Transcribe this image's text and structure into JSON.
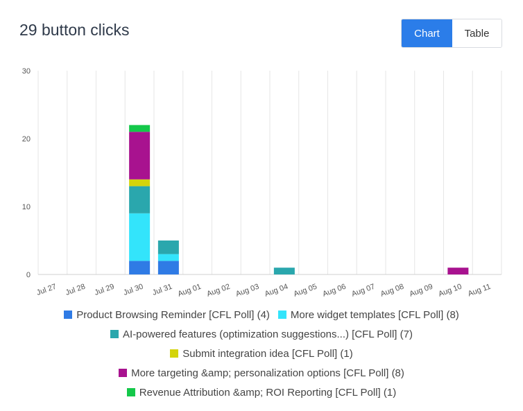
{
  "header": {
    "title": "29 button clicks",
    "chart_label": "Chart",
    "table_label": "Table"
  },
  "chart_data": {
    "type": "bar",
    "stacked": true,
    "categories": [
      "Jul 27",
      "Jul 28",
      "Jul 29",
      "Jul 30",
      "Jul 31",
      "Aug 01",
      "Aug 02",
      "Aug 03",
      "Aug 04",
      "Aug 05",
      "Aug 06",
      "Aug 07",
      "Aug 08",
      "Aug 09",
      "Aug 10",
      "Aug 11"
    ],
    "ylim": [
      0,
      30
    ],
    "yticks": [
      0,
      10,
      20,
      30
    ],
    "grid": true,
    "legend_position": "bottom",
    "series": [
      {
        "name": "Product Browsing Reminder [CFL Poll] (4)",
        "color": "#2f7be5",
        "values": [
          0,
          0,
          0,
          2,
          2,
          0,
          0,
          0,
          0,
          0,
          0,
          0,
          0,
          0,
          0,
          0
        ]
      },
      {
        "name": "More widget templates [CFL Poll] (8)",
        "color": "#33e4fb",
        "values": [
          0,
          0,
          0,
          7,
          1,
          0,
          0,
          0,
          0,
          0,
          0,
          0,
          0,
          0,
          0,
          0
        ]
      },
      {
        "name": "AI-powered features (optimization suggestions...) [CFL Poll] (7)",
        "color": "#2aa7ad",
        "values": [
          0,
          0,
          0,
          4,
          2,
          0,
          0,
          0,
          1,
          0,
          0,
          0,
          0,
          0,
          0,
          0
        ]
      },
      {
        "name": "Submit integration idea [CFL Poll] (1)",
        "color": "#d4d40a",
        "values": [
          0,
          0,
          0,
          1,
          0,
          0,
          0,
          0,
          0,
          0,
          0,
          0,
          0,
          0,
          0,
          0
        ]
      },
      {
        "name": "More targeting &amp; personalization options [CFL Poll] (8)",
        "color": "#a8128f",
        "values": [
          0,
          0,
          0,
          7,
          0,
          0,
          0,
          0,
          0,
          0,
          0,
          0,
          0,
          0,
          1,
          0
        ]
      },
      {
        "name": "Revenue Attribution &amp; ROI Reporting [CFL Poll] (1)",
        "color": "#14c84a",
        "values": [
          0,
          0,
          0,
          1,
          0,
          0,
          0,
          0,
          0,
          0,
          0,
          0,
          0,
          0,
          0,
          0
        ]
      }
    ]
  }
}
